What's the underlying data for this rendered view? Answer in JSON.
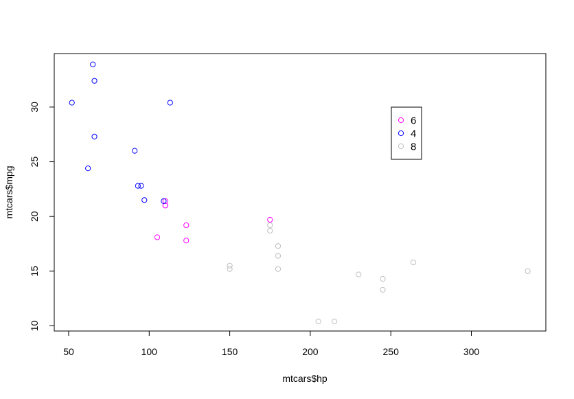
{
  "chart_data": {
    "type": "scatter",
    "title": "",
    "xlabel": "mtcars$hp",
    "ylabel": "mtcars$mpg",
    "xlim": [
      41,
      346
    ],
    "ylim": [
      9.5,
      35.0
    ],
    "xticks": [
      50,
      100,
      150,
      200,
      250,
      300
    ],
    "yticks": [
      10,
      15,
      20,
      25,
      30
    ],
    "grid": false,
    "legend_position": "inset upper right (x≈250-270, y≈25-30)",
    "legend": [
      {
        "label": "6",
        "color": "#ff00ff"
      },
      {
        "label": "4",
        "color": "#0000ff"
      },
      {
        "label": "8",
        "color": "#bebebe"
      }
    ],
    "series": [
      {
        "name": "6",
        "color": "#ff00ff",
        "points": [
          {
            "x": 110,
            "y": 21.0
          },
          {
            "x": 110,
            "y": 21.0
          },
          {
            "x": 110,
            "y": 21.4
          },
          {
            "x": 105,
            "y": 18.1
          },
          {
            "x": 123,
            "y": 19.2
          },
          {
            "x": 123,
            "y": 17.8
          },
          {
            "x": 175,
            "y": 19.7
          }
        ]
      },
      {
        "name": "4",
        "color": "#0000ff",
        "points": [
          {
            "x": 93,
            "y": 22.8
          },
          {
            "x": 62,
            "y": 24.4
          },
          {
            "x": 95,
            "y": 22.8
          },
          {
            "x": 66,
            "y": 32.4
          },
          {
            "x": 52,
            "y": 30.4
          },
          {
            "x": 65,
            "y": 33.9
          },
          {
            "x": 97,
            "y": 21.5
          },
          {
            "x": 66,
            "y": 27.3
          },
          {
            "x": 91,
            "y": 26.0
          },
          {
            "x": 113,
            "y": 30.4
          },
          {
            "x": 109,
            "y": 21.4
          }
        ]
      },
      {
        "name": "8",
        "color": "#bebebe",
        "points": [
          {
            "x": 175,
            "y": 18.7
          },
          {
            "x": 245,
            "y": 14.3
          },
          {
            "x": 180,
            "y": 16.4
          },
          {
            "x": 180,
            "y": 17.3
          },
          {
            "x": 180,
            "y": 15.2
          },
          {
            "x": 205,
            "y": 10.4
          },
          {
            "x": 215,
            "y": 10.4
          },
          {
            "x": 230,
            "y": 14.7
          },
          {
            "x": 150,
            "y": 15.5
          },
          {
            "x": 150,
            "y": 15.2
          },
          {
            "x": 245,
            "y": 13.3
          },
          {
            "x": 175,
            "y": 19.2
          },
          {
            "x": 264,
            "y": 15.8
          },
          {
            "x": 335,
            "y": 15.0
          }
        ]
      }
    ]
  }
}
